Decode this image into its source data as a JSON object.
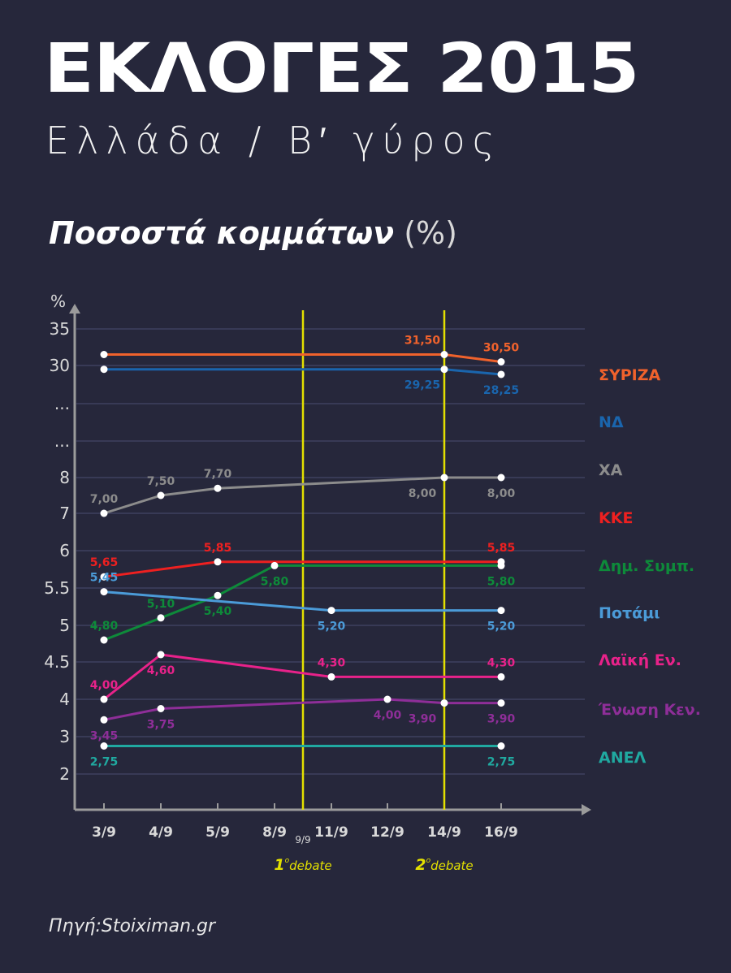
{
  "header": {
    "title": "ΕΚΛΟΓΕΣ 2015",
    "subtitle": "Ελλάδα / Β′ γύρος",
    "heading": "Ποσοστά κομμάτων",
    "heading_unit": "(%)"
  },
  "source": "Πηγή:Stoiximan.gr",
  "chart_data": {
    "type": "line",
    "ylabel": "%",
    "y_scale": "broken axis (non-linear, with gaps shown as ...)",
    "y_ticks": [
      "35",
      "30",
      "...",
      "...",
      "8",
      "7",
      "6",
      "5.5",
      "5",
      "4.5",
      "4",
      "3",
      "2"
    ],
    "categories": [
      "3/9",
      "4/9",
      "5/9",
      "8/9",
      "11/9",
      "12/9",
      "14/9",
      "16/9"
    ],
    "grid": true,
    "legend_placement": "right",
    "annotations": [
      {
        "date_label": "9/9",
        "after_category": "8/9",
        "label_num": "1",
        "label_sup": "ο",
        "label_text": "debate",
        "color": "#e3e000"
      },
      {
        "category": "14/9",
        "label_num": "2",
        "label_sup": "ο",
        "label_text": "debate",
        "color": "#e3e000"
      }
    ],
    "series": [
      {
        "name": "ΣΥΡΙΖΑ",
        "color": "#f0622c",
        "points": [
          {
            "x": "3/9",
            "y": 31.5,
            "label": ""
          },
          {
            "x": "14/9",
            "y": 31.5,
            "label": "31,50",
            "pos": "above"
          },
          {
            "x": "16/9",
            "y": 30.5,
            "label": "30,50",
            "pos": "above"
          }
        ]
      },
      {
        "name": "ΝΔ",
        "color": "#1a65ad",
        "points": [
          {
            "x": "3/9",
            "y": 29.25,
            "label": ""
          },
          {
            "x": "14/9",
            "y": 29.25,
            "label": "29,25",
            "pos": "below"
          },
          {
            "x": "16/9",
            "y": 28.25,
            "label": "28,25",
            "pos": "below"
          }
        ]
      },
      {
        "name": "ΧΑ",
        "color": "#8c8c8c",
        "points": [
          {
            "x": "3/9",
            "y": 7.0,
            "label": "7,00",
            "pos": "above"
          },
          {
            "x": "4/9",
            "y": 7.5,
            "label": "7,50",
            "pos": "above"
          },
          {
            "x": "5/9",
            "y": 7.7,
            "label": "7,70",
            "pos": "above"
          },
          {
            "x": "14/9",
            "y": 8.0,
            "label": "8,00",
            "pos": "below"
          },
          {
            "x": "16/9",
            "y": 8.0,
            "label": "8,00",
            "pos": "below"
          }
        ]
      },
      {
        "name": "ΚΚΕ",
        "color": "#ee2020",
        "points": [
          {
            "x": "3/9",
            "y": 5.65,
            "label": "5,65",
            "pos": "above"
          },
          {
            "x": "5/9",
            "y": 5.85,
            "label": "5,85",
            "pos": "above"
          },
          {
            "x": "16/9",
            "y": 5.85,
            "label": "5,85",
            "pos": "above"
          }
        ]
      },
      {
        "name": "Δημ. Συμπ.",
        "color": "#0e8a3a",
        "points": [
          {
            "x": "3/9",
            "y": 4.8,
            "label": "4,80",
            "pos": "above"
          },
          {
            "x": "4/9",
            "y": 5.1,
            "label": "5,10",
            "pos": "above"
          },
          {
            "x": "5/9",
            "y": 5.4,
            "label": "5,40",
            "pos": "below"
          },
          {
            "x": "8/9",
            "y": 5.8,
            "label": "5,80",
            "pos": "below"
          },
          {
            "x": "16/9",
            "y": 5.8,
            "label": "5,80",
            "pos": "below"
          }
        ]
      },
      {
        "name": "Ποτάμι",
        "color": "#4b9bd8",
        "points": [
          {
            "x": "3/9",
            "y": 5.45,
            "label": "5,45",
            "pos": "above"
          },
          {
            "x": "11/9",
            "y": 5.2,
            "label": "5,20",
            "pos": "below"
          },
          {
            "x": "16/9",
            "y": 5.2,
            "label": "5,20",
            "pos": "below"
          }
        ]
      },
      {
        "name": "Λαϊκή Εν.",
        "color": "#e8228a",
        "points": [
          {
            "x": "3/9",
            "y": 4.0,
            "label": "4,00",
            "pos": "above"
          },
          {
            "x": "4/9",
            "y": 4.6,
            "label": "4,60",
            "pos": "below"
          },
          {
            "x": "11/9",
            "y": 4.3,
            "label": "4,30",
            "pos": "above"
          },
          {
            "x": "16/9",
            "y": 4.3,
            "label": "4,30",
            "pos": "above"
          }
        ]
      },
      {
        "name": "Ένωση Κεν.",
        "color": "#8e2e98",
        "points": [
          {
            "x": "3/9",
            "y": 3.45,
            "label": "3,45",
            "pos": "below"
          },
          {
            "x": "4/9",
            "y": 3.75,
            "label": "3,75",
            "pos": "below"
          },
          {
            "x": "12/9",
            "y": 4.0,
            "label": "4,00",
            "pos": "below"
          },
          {
            "x": "14/9",
            "y": 3.9,
            "label": "3,90",
            "pos": "below"
          },
          {
            "x": "16/9",
            "y": 3.9,
            "label": "3,90",
            "pos": "below"
          }
        ]
      },
      {
        "name": "ΑΝΕΛ",
        "color": "#20a9a0",
        "points": [
          {
            "x": "3/9",
            "y": 2.75,
            "label": "2,75",
            "pos": "below"
          },
          {
            "x": "16/9",
            "y": 2.75,
            "label": "2,75",
            "pos": "below"
          }
        ]
      }
    ]
  }
}
